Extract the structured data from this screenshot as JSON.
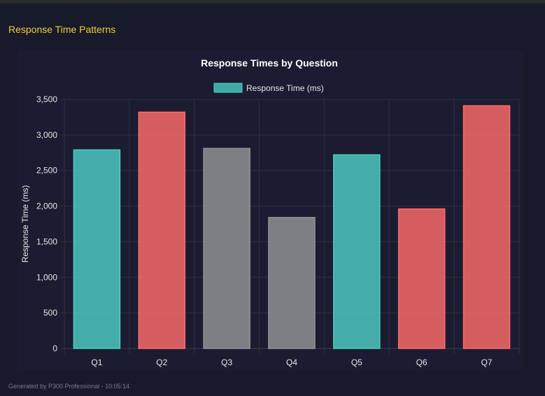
{
  "page": {
    "section_title": "Response Time Patterns",
    "footer": "Generated by P300 Professional - 10:05:14"
  },
  "chart_data": {
    "type": "bar",
    "title": "Response Times by Question",
    "legend": {
      "label": "Response Time (ms)",
      "placement": "top",
      "color": "#4ecdc4"
    },
    "xlabel": "",
    "ylabel": "Response Time (ms)",
    "ylim": [
      0,
      3500
    ],
    "yticks": [
      0,
      500,
      1000,
      1500,
      2000,
      2500,
      3000,
      3500
    ],
    "ytick_labels": [
      "0",
      "500",
      "1,000",
      "1,500",
      "2,000",
      "2,500",
      "3,000",
      "3,500"
    ],
    "grid": true,
    "categories": [
      "Q1",
      "Q2",
      "Q3",
      "Q4",
      "Q5",
      "Q6",
      "Q7"
    ],
    "values": [
      2790,
      3320,
      2810,
      1840,
      2720,
      1960,
      3410
    ],
    "colors": [
      "#4ecdc4",
      "#ff6b6b",
      "#959595",
      "#959595",
      "#4ecdc4",
      "#ff6b6b",
      "#ff6b6b"
    ]
  }
}
